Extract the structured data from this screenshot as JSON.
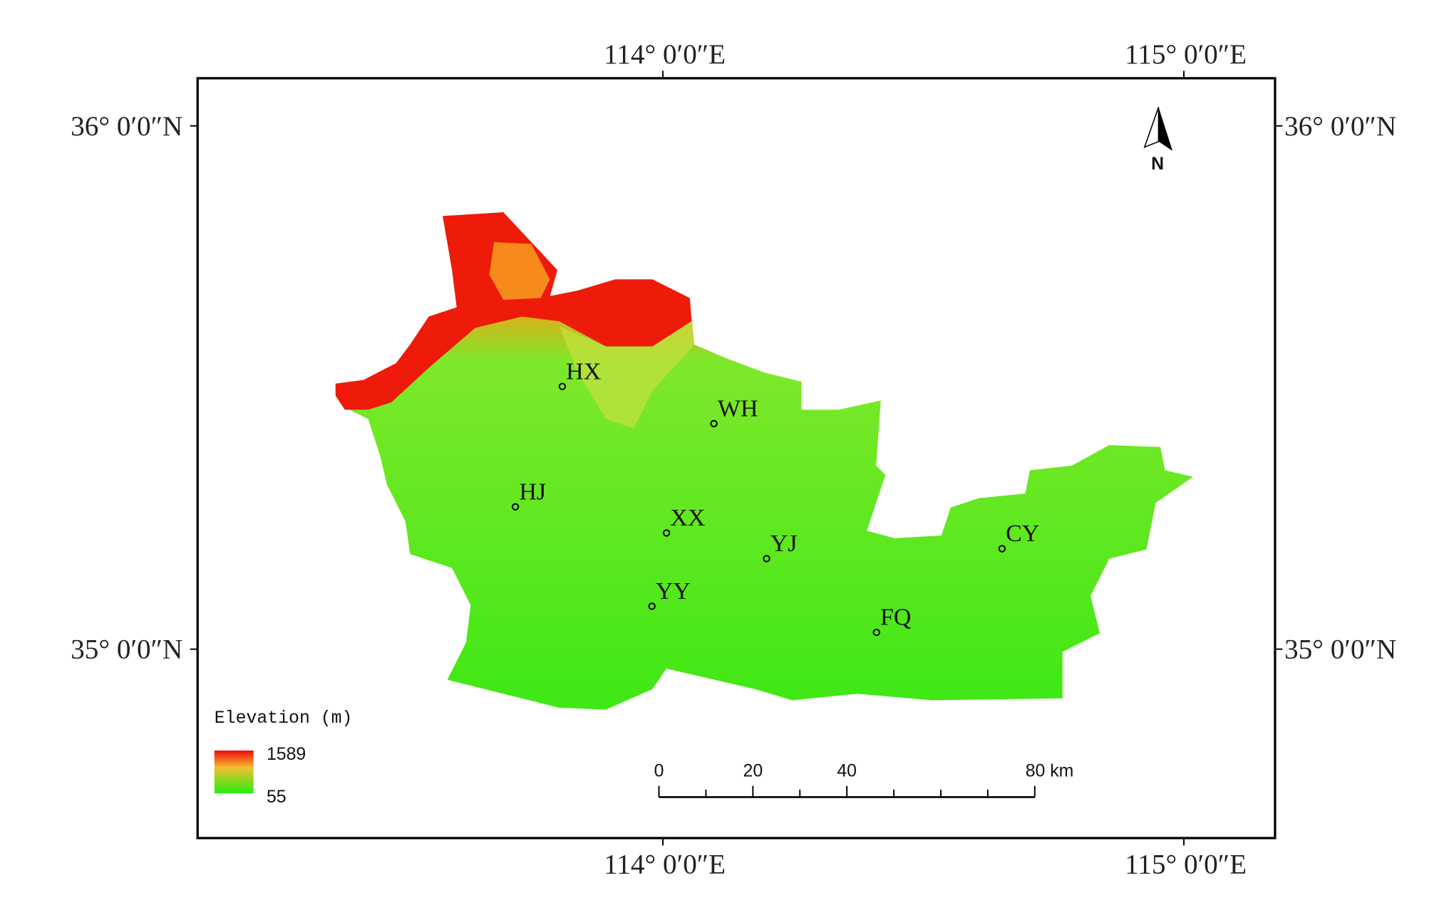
{
  "map": {
    "xlim": [
      113.107,
      115.175
    ],
    "ylim": [
      34.639,
      36.091
    ],
    "lon_ticks": [
      {
        "value": 114,
        "label": "114° 0′0″E"
      },
      {
        "value": 115,
        "label": "115° 0′0″E"
      }
    ],
    "lat_ticks": [
      {
        "value": 36,
        "label": "36° 0′0″N"
      },
      {
        "value": 35,
        "label": "35° 0′0″N"
      }
    ],
    "stations": [
      {
        "name": "HX",
        "lon": 113.807,
        "lat": 35.502
      },
      {
        "name": "WH",
        "lon": 114.098,
        "lat": 35.431
      },
      {
        "name": "HJ",
        "lon": 113.717,
        "lat": 35.272
      },
      {
        "name": "XX",
        "lon": 114.007,
        "lat": 35.222
      },
      {
        "name": "YJ",
        "lon": 114.199,
        "lat": 35.173
      },
      {
        "name": "YY",
        "lon": 113.979,
        "lat": 35.082
      },
      {
        "name": "FQ",
        "lon": 114.41,
        "lat": 35.032
      },
      {
        "name": "CY",
        "lon": 114.651,
        "lat": 35.192
      }
    ],
    "north_arrow": "N",
    "legend": {
      "title": "Elevation (m)",
      "max": 1589,
      "min": 55
    },
    "scale_bar": {
      "ticks": [
        0,
        20,
        40,
        {
          "value": 80,
          "label": "80 km"
        }
      ],
      "minor_ticks": [
        10,
        30,
        50,
        60,
        70
      ]
    }
  }
}
